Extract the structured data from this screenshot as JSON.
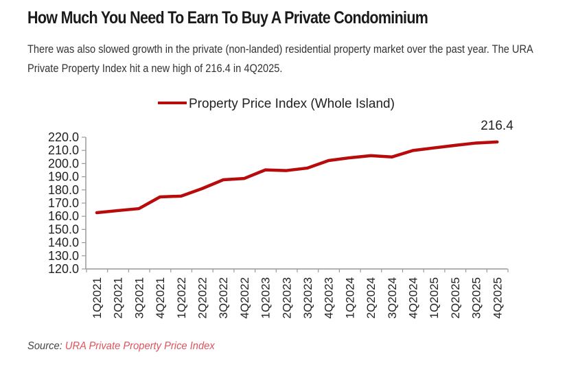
{
  "article": {
    "heading": "How Much You Need To Earn To Buy A Private Condominium",
    "intro": "There was also slowed growth in the private (non-landed) residential property market over the past year. The URA Private Property Index hit a new high of 216.4 in 4Q2025.",
    "source_label": "Source:",
    "source_link": "URA Private Property Price Index",
    "link_color": "#e0525b"
  },
  "chart_data": {
    "type": "line",
    "title": "",
    "xlabel": "",
    "ylabel": "",
    "legend": {
      "position": "top",
      "entries": [
        "Property Price Index (Whole Island)"
      ]
    },
    "line_color": "#b80c0c",
    "categories": [
      "1Q2021",
      "2Q2021",
      "3Q2021",
      "4Q2021",
      "1Q2022",
      "2Q2022",
      "3Q2022",
      "4Q2022",
      "1Q2023",
      "2Q2023",
      "3Q2023",
      "4Q2023",
      "1Q2024",
      "2Q2024",
      "3Q2024",
      "4Q2024",
      "1Q2025",
      "2Q2025",
      "3Q2025",
      "4Q2025"
    ],
    "series": [
      {
        "name": "Property Price Index (Whole Island)",
        "values": [
          162.7,
          164.3,
          165.8,
          174.7,
          175.3,
          181.0,
          187.7,
          188.7,
          195.2,
          194.7,
          196.6,
          202.3,
          204.4,
          206.0,
          205.0,
          209.9,
          211.9,
          213.8,
          215.6,
          216.4
        ]
      }
    ],
    "annotations": [
      {
        "category": "4Q2025",
        "text": "216.4"
      }
    ],
    "ylim": [
      120,
      220
    ],
    "yticks": [
      "220.0",
      "210.0",
      "200.0",
      "190.0",
      "180.0",
      "170.0",
      "160.0",
      "150.0",
      "140.0",
      "130.0",
      "120.0"
    ],
    "grid": false
  }
}
